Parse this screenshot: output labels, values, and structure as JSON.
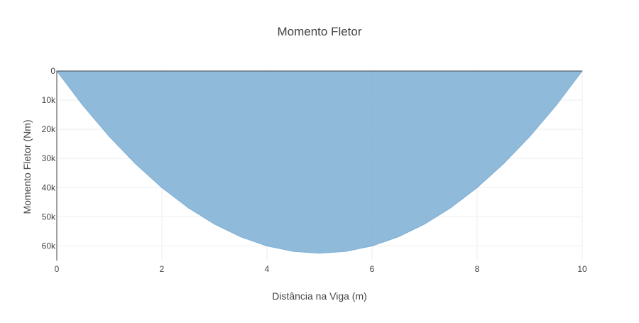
{
  "chart_data": {
    "type": "area",
    "title": "Momento Fletor",
    "xlabel": "Distância na Viga (m)",
    "ylabel": "Momento Fletor (Nm)",
    "xlim": [
      0,
      10
    ],
    "ylim": [
      65000,
      0
    ],
    "y_axis_reversed": true,
    "grid": true,
    "legend": "none",
    "x_ticks": [
      {
        "value": 0,
        "label": "0"
      },
      {
        "value": 2,
        "label": "2"
      },
      {
        "value": 4,
        "label": "4"
      },
      {
        "value": 6,
        "label": "6"
      },
      {
        "value": 8,
        "label": "8"
      },
      {
        "value": 10,
        "label": "10"
      }
    ],
    "y_ticks": [
      {
        "value": 0,
        "label": "0"
      },
      {
        "value": 10000,
        "label": "10k"
      },
      {
        "value": 20000,
        "label": "20k"
      },
      {
        "value": 30000,
        "label": "30k"
      },
      {
        "value": 40000,
        "label": "40k"
      },
      {
        "value": 50000,
        "label": "50k"
      },
      {
        "value": 60000,
        "label": "60k"
      }
    ],
    "series": [
      {
        "fill_color": "#7fb0d5",
        "line_color": "#7fb0d5",
        "x": [
          0,
          0.5,
          1,
          1.5,
          2,
          2.5,
          3,
          3.5,
          4,
          4.5,
          5,
          5.5,
          6,
          6.5,
          7,
          7.5,
          8,
          8.5,
          9,
          9.5,
          10
        ],
        "y": [
          0,
          11875,
          22500,
          31875,
          40000,
          46875,
          52500,
          56875,
          60000,
          61875,
          62500,
          61875,
          60000,
          56875,
          52500,
          46875,
          40000,
          31875,
          22500,
          11875,
          0
        ]
      }
    ]
  }
}
